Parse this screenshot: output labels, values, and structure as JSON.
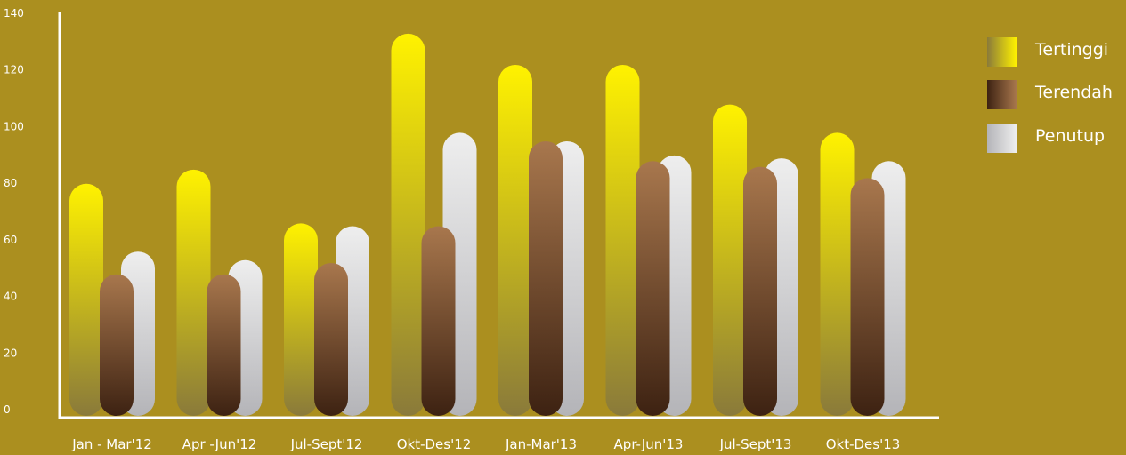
{
  "chart_data": {
    "type": "bar",
    "title": "",
    "xlabel": "",
    "ylabel": "",
    "ylim": [
      0,
      140
    ],
    "yticks": [
      0,
      20,
      40,
      60,
      80,
      100,
      120,
      140
    ],
    "categories": [
      "Jan - Mar'12",
      "Apr -Jun'12",
      "Jul-Sept'12",
      "Okt-Des'12",
      "Jan-Mar'13",
      "Apr-Jun'13",
      "Jul-Sept'13",
      "Okt-Des'13"
    ],
    "series": [
      {
        "name": "Tertinggi",
        "values": [
          82,
          87,
          68,
          135,
          124,
          124,
          110,
          100
        ]
      },
      {
        "name": "Terendah",
        "values": [
          50,
          50,
          54,
          67,
          97,
          90,
          88,
          84
        ]
      },
      {
        "name": "Penutup",
        "values": [
          58,
          55,
          67,
          100,
          97,
          92,
          91,
          90
        ]
      }
    ],
    "legend_position": "top-right",
    "grid": false,
    "colors": {
      "background": "#ab8f1f",
      "Tertinggi": [
        "#fff200",
        "#8a7a3a"
      ],
      "Terendah": [
        "#a8774d",
        "#3d2212"
      ],
      "Penutup": [
        "#eeeeee",
        "#b4b4b8"
      ],
      "axis": "#ffffff"
    }
  }
}
